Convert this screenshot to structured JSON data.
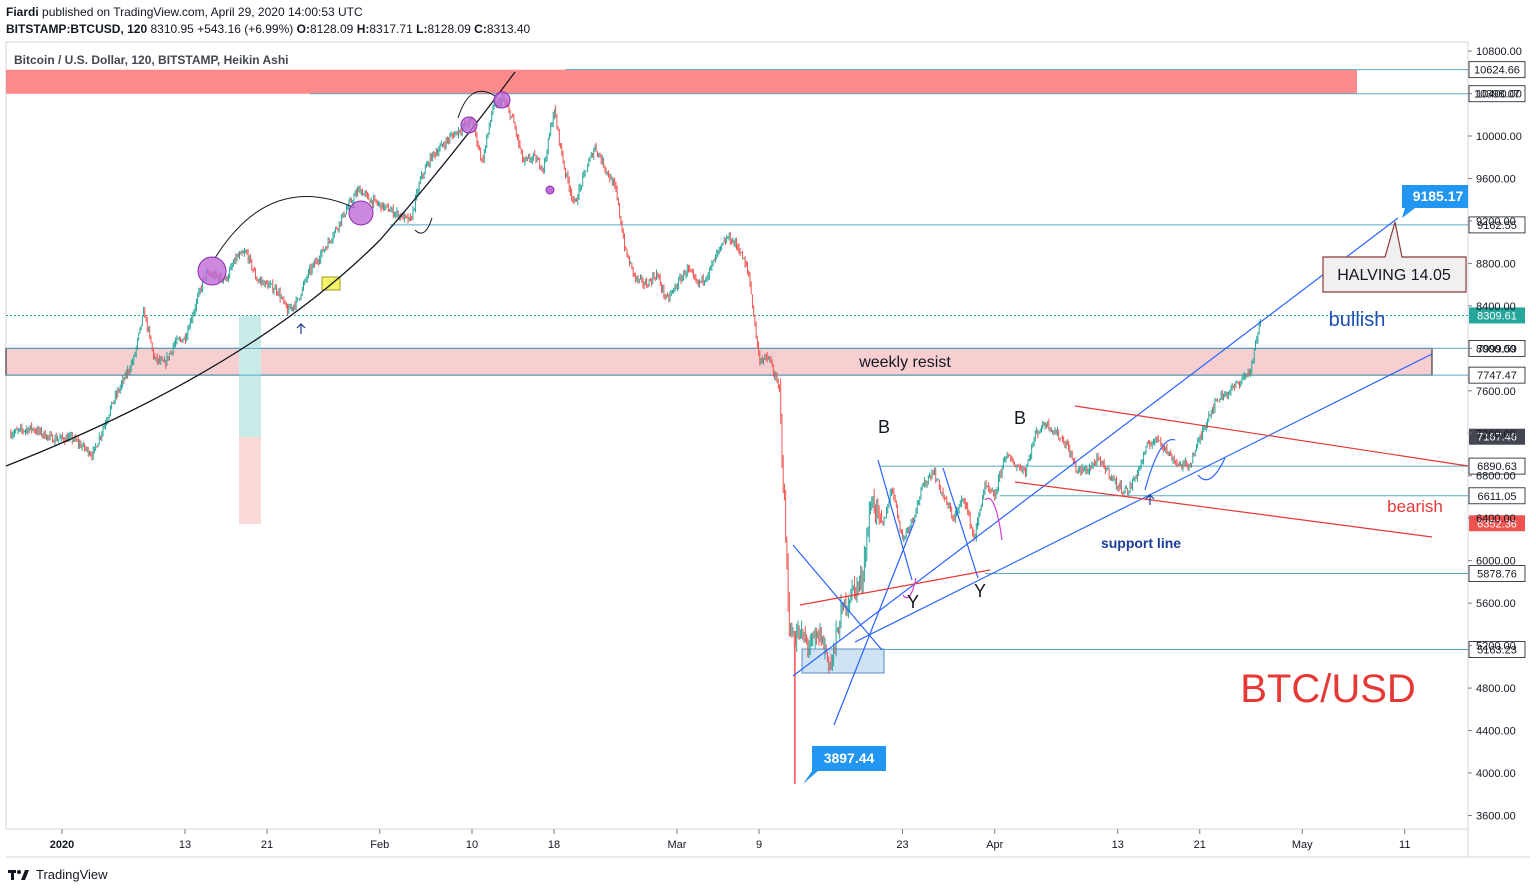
{
  "header": {
    "author": "Fiardi",
    "published": "published on TradingView.com, April 29, 2020 14:00:53 UTC",
    "symbol": "BITSTAMP:BTCUSD, 120",
    "last": "8310.95",
    "change": "+543.16 (+6.99%)",
    "o_label": "O:",
    "o_val": "8128.09",
    "h_label": "H:",
    "h_val": "8317.71",
    "l_label": "L:",
    "l_val": "8128.09",
    "c_label": "C:",
    "c_val": "8313.40"
  },
  "chart_title": "Bitcoin / U.S. Dollar, 120, BITSTAMP, Heikin Ashi",
  "footer": {
    "brand": "TradingView"
  },
  "colors": {
    "up": "#26a69a",
    "down": "#ef5350",
    "blue": "#2962ff",
    "red": "#e53935",
    "resist_zone": "#f8cfd0",
    "top_zone": "#ff8a8a",
    "callout": "#2196f3"
  },
  "chart_data": {
    "type": "candlestick",
    "title": "Bitcoin / U.S. Dollar, 120, BITSTAMP, Heikin Ashi",
    "ylim": [
      3500,
      10800
    ],
    "y_ticks": [
      3600,
      4000,
      4400,
      4800,
      5200,
      5600,
      6000,
      6400,
      6800,
      7200,
      7600,
      8000,
      8400,
      8800,
      9200,
      9600,
      10000,
      10400,
      10800
    ],
    "y_tick_labels": [
      "3600.00",
      "4000.00",
      "4400.00",
      "4800.00",
      "5200.00",
      "5600.00",
      "6000.00",
      "6400.00",
      "6800.00",
      "7200.00",
      "7600.00",
      "8000.00",
      "8400.00",
      "8800.00",
      "9200.00",
      "9600.00",
      "10000.00",
      "10400.00",
      "10800.00"
    ],
    "x_ticks": [
      {
        "day": 0,
        "label": "2020"
      },
      {
        "day": 12,
        "label": "13"
      },
      {
        "day": 20,
        "label": "21"
      },
      {
        "day": 31,
        "label": "Feb"
      },
      {
        "day": 40,
        "label": "10"
      },
      {
        "day": 48,
        "label": "18"
      },
      {
        "day": 60,
        "label": "Mar"
      },
      {
        "day": 68,
        "label": "9"
      },
      {
        "day": 82,
        "label": "23"
      },
      {
        "day": 91,
        "label": "Apr"
      },
      {
        "day": 103,
        "label": "13"
      },
      {
        "day": 111,
        "label": "21"
      },
      {
        "day": 121,
        "label": "May"
      },
      {
        "day": 131,
        "label": "11"
      }
    ],
    "x_range_days": [
      -5,
      137
    ],
    "price_path": [
      [
        -5,
        7200
      ],
      [
        -3,
        7250
      ],
      [
        -1,
        7150
      ],
      [
        1,
        7150
      ],
      [
        3,
        7000
      ],
      [
        5,
        7500
      ],
      [
        7,
        7900
      ],
      [
        8,
        8350
      ],
      [
        9,
        7900
      ],
      [
        10,
        7850
      ],
      [
        11,
        8050
      ],
      [
        12,
        8100
      ],
      [
        14,
        8700
      ],
      [
        16,
        8650
      ],
      [
        17,
        8850
      ],
      [
        18,
        8900
      ],
      [
        19,
        8650
      ],
      [
        20,
        8600
      ],
      [
        21,
        8550
      ],
      [
        22,
        8350
      ],
      [
        23,
        8450
      ],
      [
        24,
        8700
      ],
      [
        26,
        9000
      ],
      [
        28,
        9350
      ],
      [
        29,
        9500
      ],
      [
        30,
        9400
      ],
      [
        32,
        9300
      ],
      [
        34,
        9200
      ],
      [
        35,
        9600
      ],
      [
        36,
        9800
      ],
      [
        38,
        10000
      ],
      [
        40,
        10150
      ],
      [
        41,
        9750
      ],
      [
        42,
        10250
      ],
      [
        43,
        10350
      ],
      [
        44,
        10150
      ],
      [
        45,
        9750
      ],
      [
        46,
        9800
      ],
      [
        47,
        9700
      ],
      [
        48,
        10250
      ],
      [
        49,
        9700
      ],
      [
        50,
        9350
      ],
      [
        51,
        9650
      ],
      [
        52,
        9900
      ],
      [
        53,
        9700
      ],
      [
        54,
        9500
      ],
      [
        55,
        8900
      ],
      [
        56,
        8650
      ],
      [
        57,
        8600
      ],
      [
        58,
        8700
      ],
      [
        59,
        8450
      ],
      [
        60,
        8600
      ],
      [
        61,
        8750
      ],
      [
        62,
        8600
      ],
      [
        63,
        8700
      ],
      [
        64,
        8900
      ],
      [
        65,
        9050
      ],
      [
        66,
        8950
      ],
      [
        67,
        8700
      ],
      [
        68,
        7900
      ],
      [
        69,
        7900
      ],
      [
        70,
        7600
      ],
      [
        71,
        5300
      ],
      [
        72,
        5300
      ],
      [
        73,
        5200
      ],
      [
        74,
        5300
      ],
      [
        75,
        5000
      ],
      [
        76,
        5500
      ],
      [
        77,
        5700
      ],
      [
        78,
        5800
      ],
      [
        79,
        6600
      ],
      [
        80,
        6300
      ],
      [
        81,
        6700
      ],
      [
        82,
        6200
      ],
      [
        83,
        6400
      ],
      [
        84,
        6700
      ],
      [
        85,
        6850
      ],
      [
        86,
        6600
      ],
      [
        87,
        6400
      ],
      [
        88,
        6600
      ],
      [
        89,
        6200
      ],
      [
        90,
        6700
      ],
      [
        91,
        6600
      ],
      [
        92,
        7000
      ],
      [
        93,
        6900
      ],
      [
        94,
        6850
      ],
      [
        95,
        7200
      ],
      [
        96,
        7300
      ],
      [
        97,
        7200
      ],
      [
        98,
        7100
      ],
      [
        99,
        6850
      ],
      [
        100,
        6850
      ],
      [
        101,
        6950
      ],
      [
        102,
        6850
      ],
      [
        103,
        6700
      ],
      [
        104,
        6650
      ],
      [
        105,
        6850
      ],
      [
        106,
        7100
      ],
      [
        107,
        7150
      ],
      [
        108,
        7000
      ],
      [
        109,
        6900
      ],
      [
        110,
        6900
      ],
      [
        111,
        7150
      ],
      [
        112,
        7400
      ],
      [
        113,
        7550
      ],
      [
        114,
        7600
      ],
      [
        115,
        7700
      ],
      [
        116,
        7800
      ],
      [
        117,
        8310
      ]
    ],
    "horizontal_levels": [
      {
        "price": 10624.66,
        "label": "10624.66"
      },
      {
        "price": 10398.07,
        "label": "10398.07"
      },
      {
        "price": 9162.55,
        "label": "9162.55"
      },
      {
        "price": 8309.61,
        "label": "8309.61"
      },
      {
        "price": 7999.59,
        "label": "7999.59"
      },
      {
        "price": 7747.47,
        "label": "7747.47"
      },
      {
        "price": 7167.46,
        "label": "7167.46"
      },
      {
        "price": 6890.63,
        "label": "6890.63"
      },
      {
        "price": 6611.05,
        "label": "6611.05"
      },
      {
        "price": 6352.36,
        "label": "6352.36"
      },
      {
        "price": 5878.76,
        "label": "5878.76"
      },
      {
        "price": 5163.23,
        "label": "5163.23"
      }
    ],
    "zones": [
      {
        "name": "weekly-resist-zone",
        "label": "weekly resist",
        "from": 7747.47,
        "to": 7999.59
      },
      {
        "name": "top-resist-zone",
        "label": "",
        "from": 10398.07,
        "to": 10624.66
      }
    ],
    "annotations": {
      "bullish": "bullish",
      "bearish": "bearish",
      "support_line": "support line",
      "pair": "BTC/USD",
      "halving": "HALVING 14.05",
      "high_callout": "9185.17",
      "low_callout": "3897.44",
      "wave_b1": "B",
      "wave_b2": "B",
      "wave_y1": "Y",
      "wave_y2": "Y"
    }
  }
}
